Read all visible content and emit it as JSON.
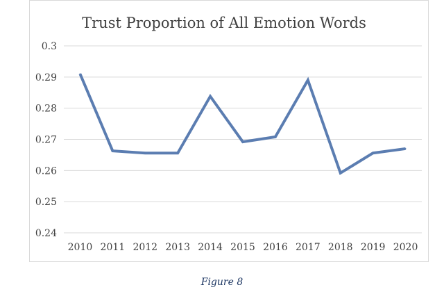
{
  "figure_caption": "Figure 8",
  "chart_data": {
    "type": "line",
    "title": "Trust Proportion of All Emotion Words",
    "xlabel": "",
    "ylabel": "",
    "categories": [
      "2010",
      "2011",
      "2012",
      "2013",
      "2014",
      "2015",
      "2016",
      "2017",
      "2018",
      "2019",
      "2020"
    ],
    "series": [
      {
        "values": [
          0.291,
          0.2663,
          0.2656,
          0.2656,
          0.2838,
          0.2692,
          0.2708,
          0.289,
          0.2592,
          0.2656,
          0.267
        ]
      }
    ],
    "ylim": [
      0.24,
      0.3
    ],
    "yticks": [
      "0.24",
      "0.25",
      "0.26",
      "0.27",
      "0.28",
      "0.29",
      "0.3"
    ],
    "grid": true,
    "legend": "none",
    "colors": {
      "line": "#5b7db1",
      "grid": "#d9d9d9",
      "text": "#404040"
    }
  }
}
